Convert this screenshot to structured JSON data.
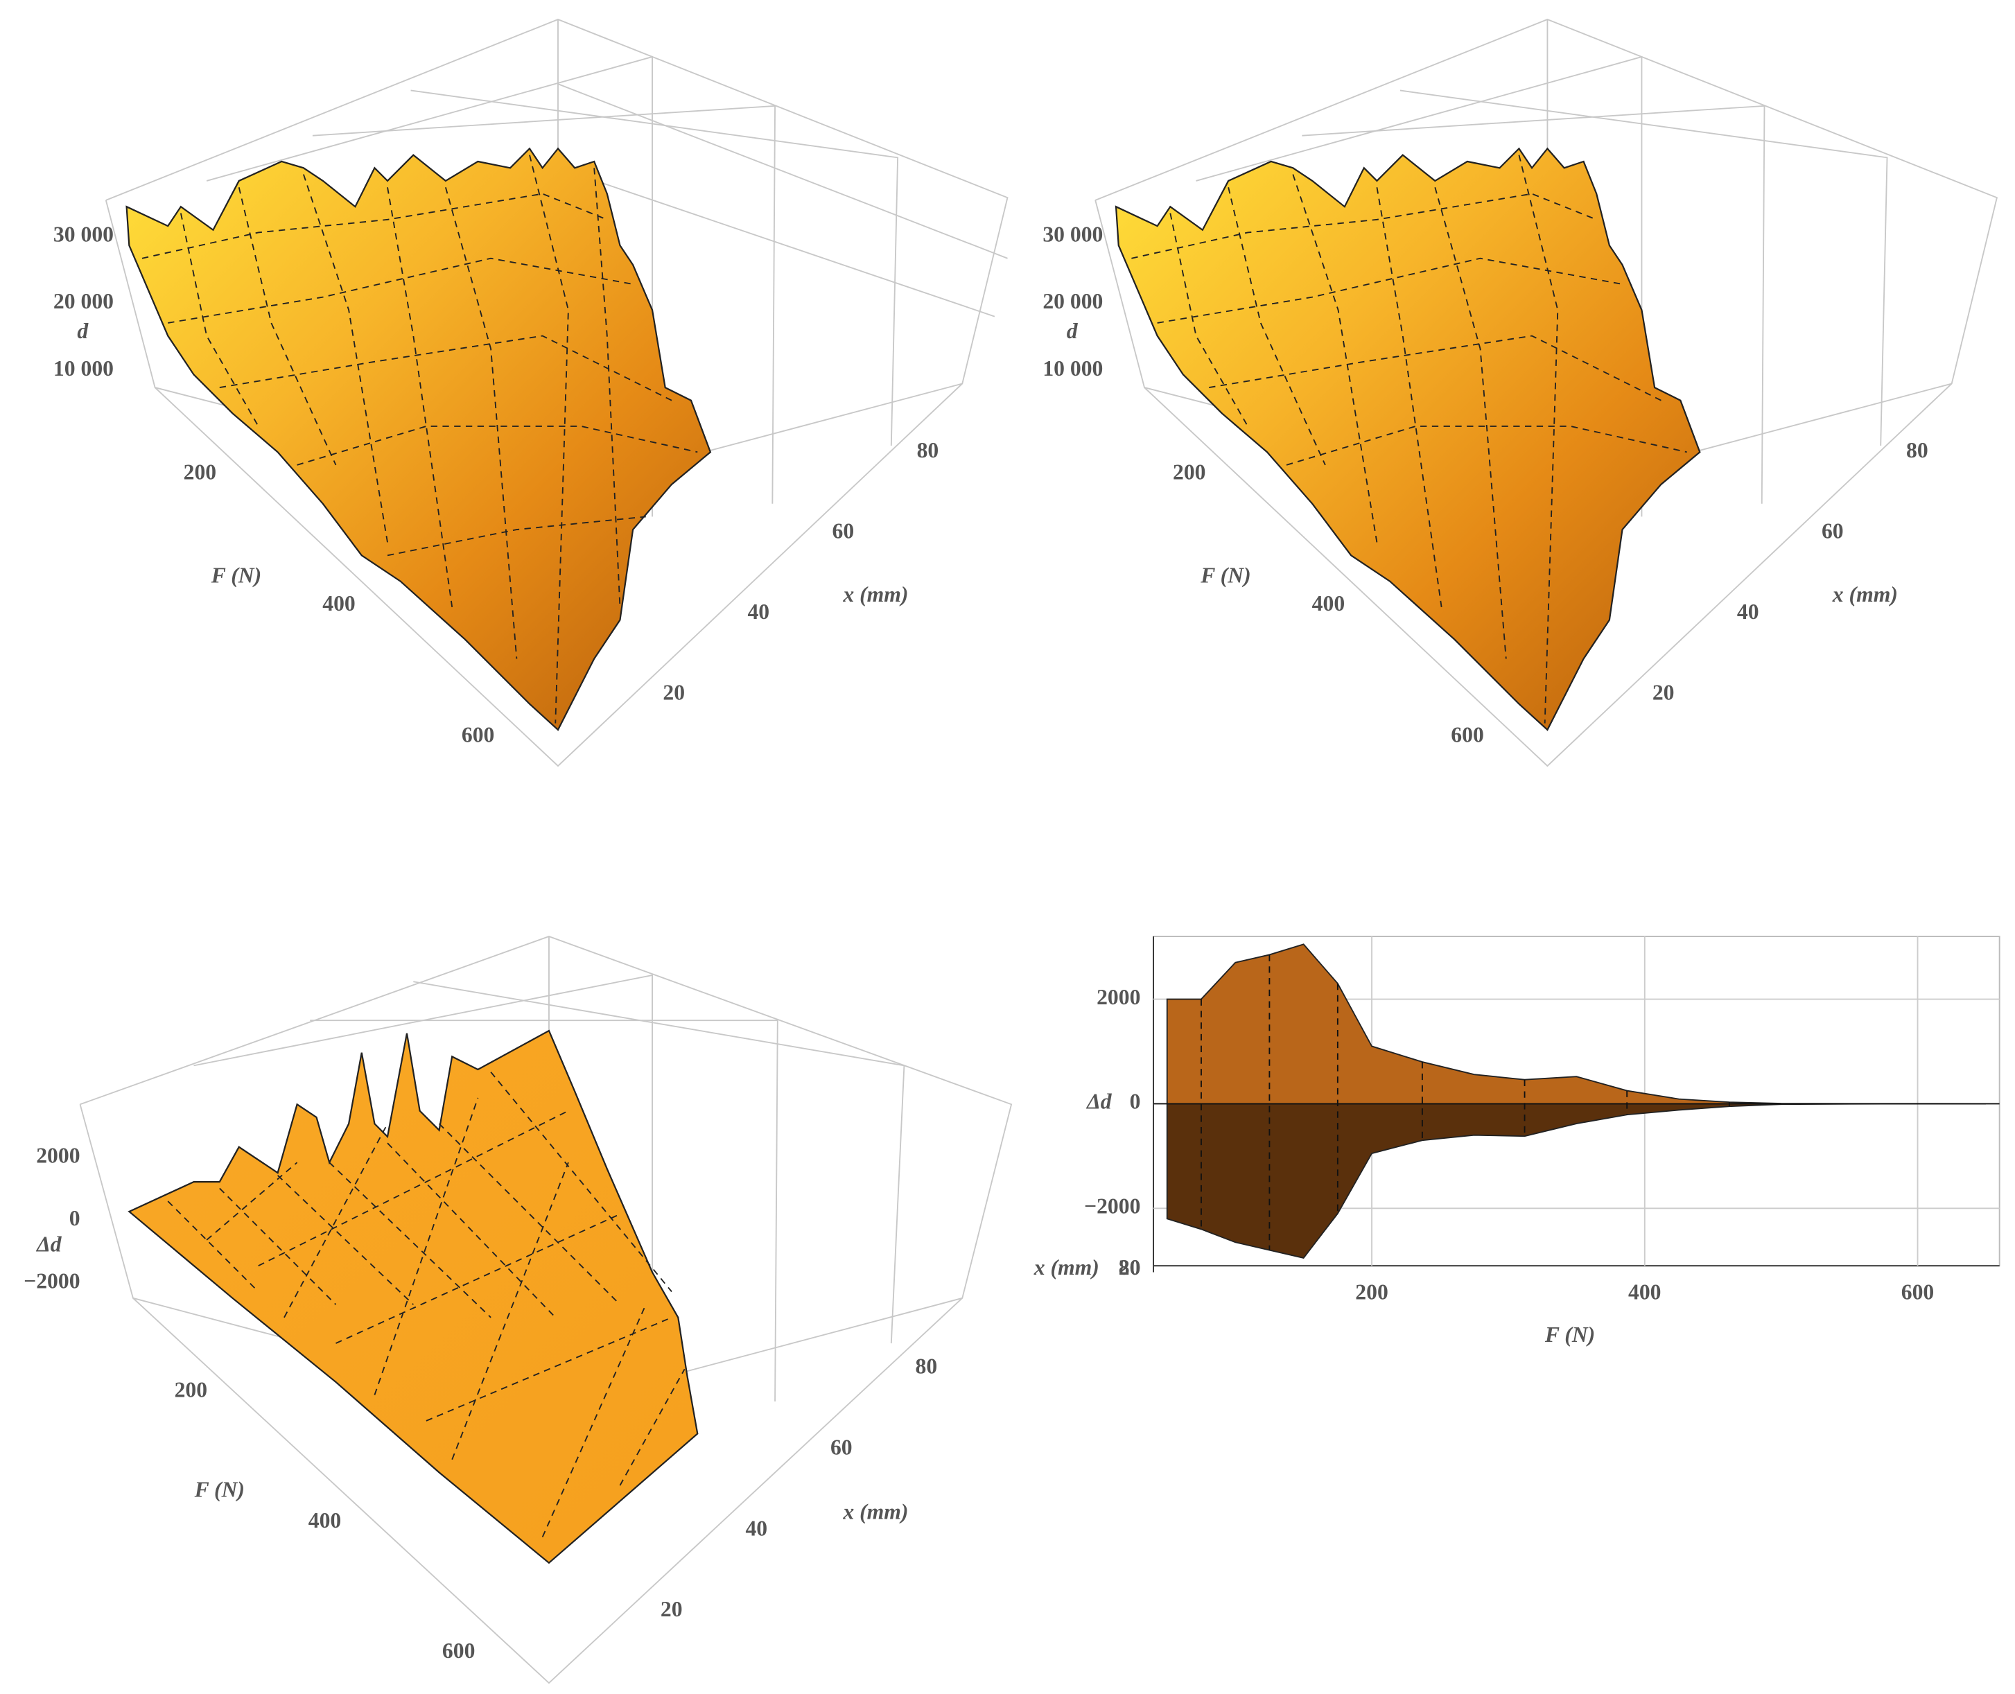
{
  "chart_data": [
    {
      "type": "surface3d",
      "zlabel": "d",
      "xlabel": "x (mm)",
      "ylabel": "F (N)",
      "xlim": [
        10,
        90
      ],
      "xticks": [
        20,
        40,
        60,
        80
      ],
      "ylim": [
        50,
        650
      ],
      "yticks": [
        200,
        400,
        600
      ],
      "zlim": [
        0,
        35000
      ],
      "zticks": [
        {
          "value": 10000,
          "label": "10 000"
        },
        {
          "value": 20000,
          "label": "20 000"
        },
        {
          "value": 30000,
          "label": "30 000"
        }
      ],
      "color": "#f5a623"
    },
    {
      "type": "surface3d",
      "zlabel": "d",
      "xlabel": "x (mm)",
      "ylabel": "F (N)",
      "xlim": [
        10,
        90
      ],
      "xticks": [
        20,
        40,
        60,
        80
      ],
      "ylim": [
        50,
        650
      ],
      "yticks": [
        200,
        400,
        600
      ],
      "zlim": [
        0,
        35000
      ],
      "zticks": [
        {
          "value": 10000,
          "label": "10 000"
        },
        {
          "value": 20000,
          "label": "20 000"
        },
        {
          "value": 30000,
          "label": "30 000"
        }
      ],
      "color": "#f5a623"
    },
    {
      "type": "surface3d",
      "zlabel": "Δd",
      "xlabel": "x (mm)",
      "ylabel": "F (N)",
      "xlim": [
        10,
        90
      ],
      "xticks": [
        20,
        40,
        60,
        80
      ],
      "ylim": [
        50,
        650
      ],
      "yticks": [
        200,
        400,
        600
      ],
      "zlim": [
        -3000,
        3000
      ],
      "zticks": [
        {
          "value": -2000,
          "label": "−2000"
        },
        0,
        2000
      ],
      "color": "#f7a21e"
    },
    {
      "type": "area",
      "xlabel": "F (N)",
      "ylabel": "Δd",
      "zlabel": "x (mm)",
      "zticks": [
        80,
        20
      ],
      "x": [
        50,
        75,
        100,
        125,
        150,
        175,
        200,
        237,
        275,
        312,
        350,
        387,
        425,
        462,
        500,
        550,
        600,
        650
      ],
      "xlim": [
        40,
        660
      ],
      "xticks": [
        200,
        400,
        600
      ],
      "ylim": [
        -3100,
        3200
      ],
      "yticks": [
        {
          "value": -2000,
          "label": "−2000"
        },
        0,
        2000
      ],
      "grid": true,
      "series": [
        {
          "color": "#b9661a",
          "values": [
            2000,
            2000,
            2700,
            2850,
            3050,
            2300,
            1100,
            800,
            560,
            460,
            520,
            250,
            90,
            30,
            5,
            2,
            1,
            0
          ]
        },
        {
          "color": "#5a300c",
          "values": [
            -2200,
            -2400,
            -2650,
            -2800,
            -2950,
            -2100,
            -950,
            -700,
            -600,
            -620,
            -380,
            -210,
            -120,
            -50,
            -10,
            -3,
            -1,
            0
          ]
        }
      ]
    }
  ]
}
